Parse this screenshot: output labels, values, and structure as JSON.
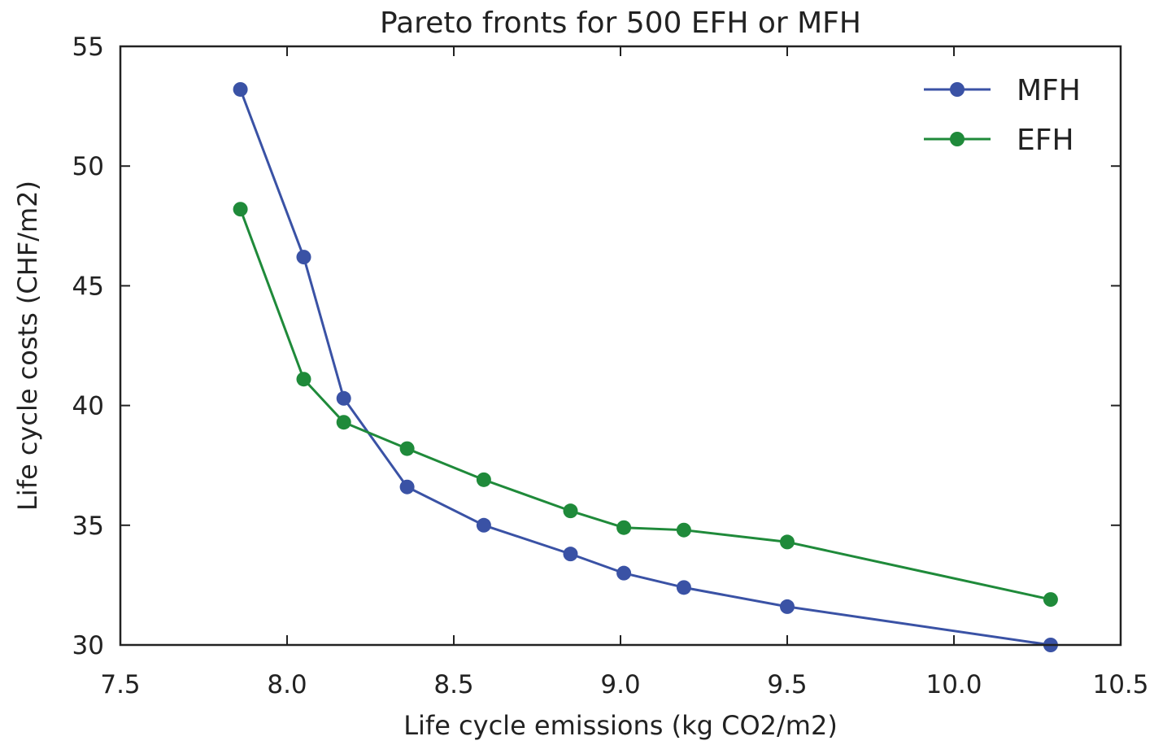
{
  "chart_data": {
    "type": "line",
    "title": "Pareto fronts for 500 EFH or MFH",
    "xlabel": "Life cycle emissions (kg CO2/m2)",
    "ylabel": "Life cycle costs (CHF/m2)",
    "xlim": [
      7.5,
      10.5
    ],
    "ylim": [
      30,
      55
    ],
    "xticks": [
      7.5,
      8.0,
      8.5,
      9.0,
      9.5,
      10.0,
      10.5
    ],
    "xtick_labels": [
      "7.5",
      "8.0",
      "8.5",
      "9.0",
      "9.5",
      "10.0",
      "10.5"
    ],
    "yticks": [
      30,
      35,
      40,
      45,
      50,
      55
    ],
    "ytick_labels": [
      "30",
      "35",
      "40",
      "45",
      "50",
      "55"
    ],
    "grid": false,
    "legend_position": "top-right",
    "series": [
      {
        "name": "MFH",
        "color": "#3a52a5",
        "x": [
          7.86,
          8.05,
          8.17,
          8.36,
          8.59,
          8.85,
          9.01,
          9.19,
          9.5,
          10.29
        ],
        "y": [
          53.2,
          46.2,
          40.3,
          36.6,
          35.0,
          33.8,
          33.0,
          32.4,
          31.6,
          30.0
        ]
      },
      {
        "name": "EFH",
        "color": "#1f8a3a",
        "x": [
          7.86,
          8.05,
          8.17,
          8.36,
          8.59,
          8.85,
          9.01,
          9.19,
          9.5,
          10.29
        ],
        "y": [
          48.2,
          41.1,
          39.3,
          38.2,
          36.9,
          35.6,
          34.9,
          34.8,
          34.3,
          31.9
        ]
      }
    ]
  }
}
